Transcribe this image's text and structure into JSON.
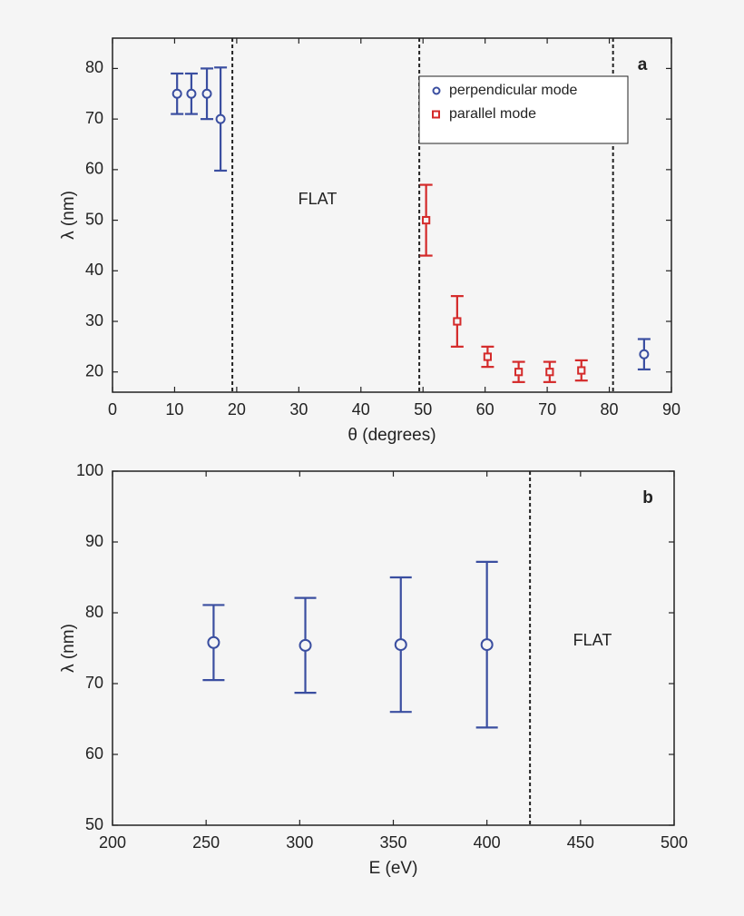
{
  "chart_data": [
    {
      "type": "scatter",
      "panel_label": "a",
      "x_label": "θ (degrees)",
      "y_label": "λ (nm)",
      "xlim": [
        0,
        90
      ],
      "ylim": [
        16,
        86
      ],
      "xticks": [
        0,
        10,
        20,
        30,
        40,
        50,
        60,
        70,
        80,
        90
      ],
      "yticks": [
        20,
        30,
        40,
        50,
        60,
        70,
        80
      ],
      "vlines": [
        19.3,
        49.4,
        80.6
      ],
      "annotation": "FLAT",
      "legend": "upper right",
      "series": [
        {
          "name": "perpendicular mode",
          "color": "#3a4ea0",
          "marker": "circle",
          "x": [
            10.4,
            12.7,
            15.2,
            17.4,
            85.6
          ],
          "values": [
            75,
            75,
            75,
            70,
            23.5
          ],
          "err": [
            4,
            4,
            5,
            10.2,
            3
          ]
        },
        {
          "name": "parallel mode",
          "color": "#d42a2a",
          "marker": "square",
          "x": [
            50.5,
            55.5,
            60.4,
            65.4,
            70.4,
            75.5
          ],
          "values": [
            50,
            30,
            23,
            20,
            20,
            20.3
          ],
          "err": [
            7,
            5,
            2,
            2,
            2,
            2
          ]
        }
      ]
    },
    {
      "type": "scatter",
      "panel_label": "b",
      "x_label": "E (eV)",
      "y_label": "λ (nm)",
      "xlim": [
        200,
        500
      ],
      "ylim": [
        50,
        100
      ],
      "xticks": [
        200,
        250,
        300,
        350,
        400,
        450,
        500
      ],
      "yticks": [
        50,
        60,
        70,
        80,
        90,
        100
      ],
      "vlines": [
        423
      ],
      "annotation": "FLAT",
      "series": [
        {
          "color": "#3a4ea0",
          "marker": "circle",
          "x": [
            254,
            303,
            354,
            400
          ],
          "values": [
            75.8,
            75.4,
            75.5,
            75.5
          ],
          "err": [
            5.3,
            6.7,
            9.5,
            11.7
          ]
        }
      ]
    }
  ]
}
